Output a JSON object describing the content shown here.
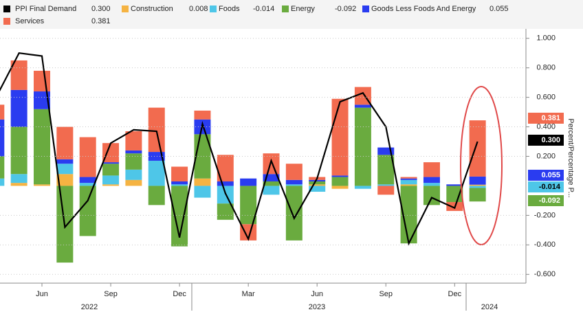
{
  "chart_data": {
    "type": "bar",
    "stacked": true,
    "y_axis_label": "Percent/Percentage P...",
    "categories": [
      null,
      null,
      "Jun",
      null,
      null,
      "Sep",
      null,
      null,
      "Dec",
      null,
      null,
      "Mar",
      null,
      null,
      "Jun",
      null,
      null,
      "Sep",
      null,
      null,
      "Dec",
      null
    ],
    "year_labels": [
      "2022",
      "2023",
      "2024"
    ],
    "ylim": [
      -0.65,
      1.05
    ],
    "yticks": [
      {
        "value": 1.0,
        "label": "1.000"
      },
      {
        "value": 0.8,
        "label": "0.800"
      },
      {
        "value": 0.6,
        "label": "0.600"
      },
      {
        "value": 0.4,
        "label": "0.400"
      },
      {
        "value": 0.2,
        "label": "0.200"
      },
      {
        "value": -0.2,
        "label": "-0.200"
      },
      {
        "value": -0.4,
        "label": "-0.400"
      },
      {
        "value": -0.6,
        "label": "-0.600"
      }
    ],
    "grid": true,
    "series": [
      {
        "name": "PPI Final Demand",
        "color": "#000000",
        "kind": "line",
        "values": [
          0.6,
          0.9,
          0.88,
          -0.28,
          -0.1,
          0.29,
          0.38,
          0.37,
          -0.35,
          0.42,
          -0.05,
          -0.36,
          0.17,
          -0.22,
          0.05,
          0.57,
          0.63,
          0.4,
          -0.39,
          -0.08,
          -0.15,
          0.3
        ],
        "value_labels": [
          null,
          null,
          null,
          null,
          null,
          null,
          null,
          null,
          null,
          null,
          null,
          null,
          null,
          null,
          null,
          null,
          null,
          null,
          null,
          null,
          null,
          "0.300"
        ]
      },
      {
        "name": "Construction",
        "color": "#f5b342",
        "values": [
          0,
          0.02,
          0.01,
          0.08,
          0,
          0.01,
          0.04,
          0,
          0,
          0.05,
          0,
          0,
          0,
          0,
          0.01,
          -0.02,
          0,
          0,
          0.01,
          0,
          0,
          0.008
        ],
        "value_labels": [
          null,
          null,
          null,
          null,
          null,
          null,
          null,
          null,
          null,
          null,
          null,
          null,
          null,
          null,
          null,
          null,
          null,
          null,
          null,
          null,
          null,
          "0.008"
        ]
      },
      {
        "name": "Foods",
        "color": "#4ec6e8",
        "values": [
          0.05,
          0.06,
          0,
          0.07,
          0.02,
          0.06,
          0.07,
          0.17,
          0.01,
          -0.08,
          -0.12,
          0,
          -0.06,
          0.01,
          -0.04,
          0,
          -0.02,
          0.01,
          0.03,
          0.02,
          0,
          -0.014
        ],
        "value_labels": [
          null,
          null,
          null,
          null,
          null,
          null,
          null,
          null,
          null,
          null,
          null,
          null,
          null,
          null,
          null,
          null,
          null,
          null,
          null,
          null,
          null,
          "-0.014"
        ]
      },
      {
        "name": "Energy",
        "color": "#6aab3f",
        "values": [
          0.15,
          0.32,
          0.51,
          -0.52,
          -0.34,
          0.08,
          0.11,
          -0.13,
          -0.41,
          0.3,
          -0.11,
          -0.26,
          0.03,
          -0.37,
          0.02,
          0.06,
          0.53,
          0.2,
          -0.39,
          -0.13,
          -0.11,
          -0.092
        ],
        "value_labels": [
          null,
          null,
          null,
          null,
          null,
          null,
          null,
          null,
          null,
          null,
          null,
          null,
          null,
          null,
          null,
          null,
          null,
          null,
          null,
          null,
          null,
          "-0.092"
        ]
      },
      {
        "name": "Goods Less Foods And Energy",
        "color": "#2a3cf0",
        "values": [
          0.25,
          0.25,
          0.12,
          0.03,
          0.04,
          0.01,
          0.02,
          0.06,
          0.02,
          0.1,
          0.03,
          0.05,
          0.05,
          0.03,
          0.01,
          0.01,
          0.02,
          0.05,
          0.01,
          0.04,
          0.01,
          0.055
        ],
        "value_labels": [
          null,
          null,
          null,
          null,
          null,
          null,
          null,
          null,
          null,
          null,
          null,
          null,
          null,
          null,
          null,
          null,
          null,
          null,
          null,
          null,
          null,
          "0.055"
        ]
      },
      {
        "name": "Services",
        "color": "#f26b4f",
        "values": [
          0.1,
          0.2,
          0.14,
          0.22,
          0.27,
          0.13,
          0.13,
          0.3,
          0.1,
          0.06,
          0.18,
          -0.11,
          0.14,
          0.11,
          0.02,
          0.52,
          0.12,
          -0.06,
          0.01,
          0.1,
          -0.06,
          0.381
        ],
        "value_labels": [
          null,
          null,
          null,
          null,
          null,
          null,
          null,
          null,
          null,
          null,
          null,
          null,
          null,
          null,
          null,
          null,
          null,
          null,
          null,
          null,
          null,
          "0.381"
        ]
      }
    ]
  }
}
